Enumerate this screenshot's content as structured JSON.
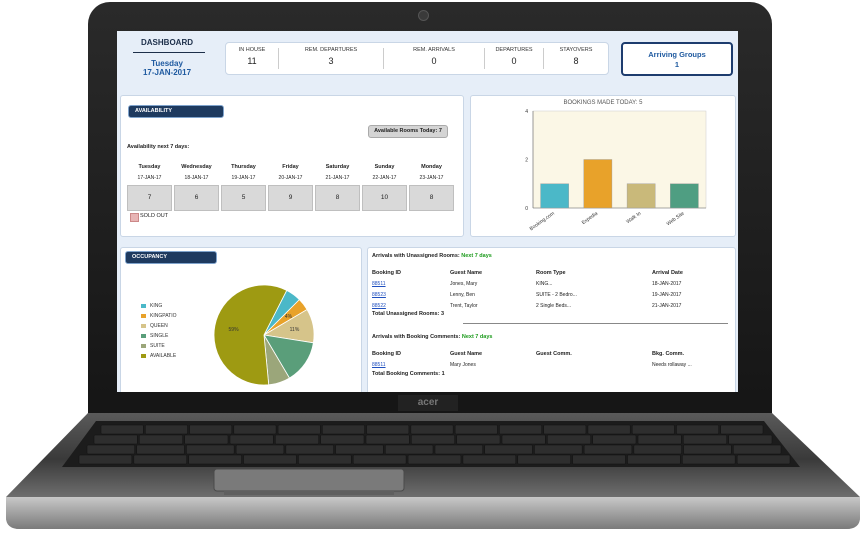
{
  "header": {
    "title": "DASHBOARD",
    "day": "Tuesday",
    "date": "17-JAN-2017"
  },
  "stats": [
    {
      "label": "IN HOUSE",
      "value": "11"
    },
    {
      "label": "REM. DEPARTURES",
      "value": "3"
    },
    {
      "label": "REM. ARRIVALS",
      "value": "0"
    },
    {
      "label": "DEPARTURES",
      "value": "0"
    },
    {
      "label": "STAYOVERS",
      "value": "8"
    }
  ],
  "arriving_groups": {
    "label": "Arriving Groups",
    "value": "1"
  },
  "availability": {
    "title": "AVAILABILITY",
    "rooms_today": "Available Rooms Today: 7",
    "next_label": "Availability next 7 days:",
    "days": [
      {
        "name": "Tuesday",
        "date": "17-JAN-17",
        "value": "7"
      },
      {
        "name": "Wednesday",
        "date": "18-JAN-17",
        "value": "6"
      },
      {
        "name": "Thursday",
        "date": "19-JAN-17",
        "value": "5"
      },
      {
        "name": "Friday",
        "date": "20-JAN-17",
        "value": "9"
      },
      {
        "name": "Saturday",
        "date": "21-JAN-17",
        "value": "8"
      },
      {
        "name": "Sunday",
        "date": "22-JAN-17",
        "value": "10"
      },
      {
        "name": "Monday",
        "date": "23-JAN-17",
        "value": "8"
      }
    ],
    "sold_out": "SOLD OUT"
  },
  "chart_data": [
    {
      "type": "bar",
      "title": "BOOKINGS MADE TODAY: 5",
      "categories": [
        "Booking.com",
        "Expedia",
        "Walk In",
        "Web Site"
      ],
      "values": [
        1,
        2,
        1,
        1
      ],
      "colors": [
        "#4bb8c8",
        "#e8a22a",
        "#c9b97a",
        "#4f9e82"
      ],
      "ylim": [
        0,
        4
      ],
      "yticks": [
        "0",
        "2",
        "4"
      ],
      "grid": false
    },
    {
      "type": "pie",
      "title": "OCCUPANCY",
      "labels": [
        "KING",
        "KINGPATIO",
        "QUEEN",
        "SINGLE",
        "SUITE",
        "AVAILABLE"
      ],
      "values": [
        5,
        4,
        11,
        14,
        7,
        59
      ],
      "slice_labels": [
        "",
        "4%",
        "11%",
        "",
        "",
        "59%"
      ],
      "colors": [
        "#4bb8c8",
        "#e8a22a",
        "#d6c48a",
        "#5a9e7a",
        "#9ba67a",
        "#9e9a12"
      ]
    }
  ],
  "unassigned": {
    "title": "Arrivals with Unassigned Rooms:",
    "period": "Next 7 days",
    "headers": [
      "Booking ID",
      "Guest Name",
      "Room Type",
      "Arrival Date"
    ],
    "rows": [
      [
        "88511",
        "Jones, Mary",
        "KING...",
        "18-JAN-2017"
      ],
      [
        "88523",
        "Lenny, Ben",
        "SUITE - 2 Bedro...",
        "19-JAN-2017"
      ],
      [
        "88522",
        "Trent, Taylor",
        "2 Single Beds...",
        "21-JAN-2017"
      ]
    ],
    "total": "Total Unassigned Rooms: 3"
  },
  "comments": {
    "title": "Arrivals with Booking Comments:",
    "period": "Next 7 days",
    "headers": [
      "Booking ID",
      "Guest Name",
      "Guest Comm.",
      "Bkg. Comm."
    ],
    "rows": [
      [
        "88511",
        "Mary Jones",
        "",
        "Needs rollaway ..."
      ]
    ],
    "total": "Total Booking Comments: 1"
  },
  "laptop": {
    "brand": "acer"
  }
}
